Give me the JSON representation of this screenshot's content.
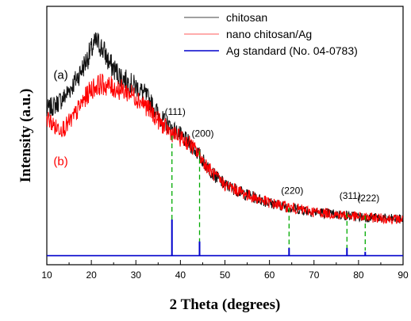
{
  "chart_data": {
    "type": "line",
    "xlabel": "2 Theta (degrees)",
    "ylabel": "Intensity (a.u.)",
    "xlim": [
      10,
      90
    ],
    "xticks": [
      10,
      20,
      30,
      40,
      50,
      60,
      70,
      80,
      90
    ],
    "y_ticks_shown": false,
    "ylim": [
      0,
      100
    ],
    "legend": {
      "placement": "top-right",
      "entries": [
        {
          "label": "chitosan",
          "color": "#808080"
        },
        {
          "label": "nano chitosan/Ag",
          "color": "#ff9090"
        },
        {
          "label": "Ag standard (No. 04-0783)",
          "color": "#0000cc"
        }
      ]
    },
    "annotations": [
      {
        "text": "(a)",
        "x": 11.5,
        "y": 72,
        "color": "#000000"
      },
      {
        "text": "(b)",
        "x": 11.5,
        "y": 38.5,
        "color": "#ff0000"
      }
    ],
    "series": [
      {
        "name": "chitosan",
        "label": "(a)",
        "color": "#111111",
        "x": [
          10,
          12,
          14,
          16,
          18,
          20,
          21,
          22,
          23,
          24,
          26,
          28,
          30,
          32,
          34,
          36,
          38,
          40,
          42,
          44,
          46,
          48,
          50,
          55,
          60,
          65,
          70,
          75,
          80,
          85,
          90
        ],
        "y": [
          60,
          62,
          65,
          70,
          76,
          83,
          86,
          85,
          82,
          78,
          74,
          71,
          69,
          66,
          61,
          56,
          53,
          50,
          47,
          43,
          38,
          34,
          31,
          27,
          24,
          22,
          20.5,
          19.5,
          18.5,
          18,
          17.5
        ]
      },
      {
        "name": "nano chitosan/Ag",
        "label": "(b)",
        "color": "#ff0000",
        "x": [
          10,
          12,
          14,
          16,
          18,
          20,
          22,
          24,
          26,
          28,
          30,
          32,
          34,
          36,
          38,
          40,
          42,
          44,
          46,
          48,
          50,
          55,
          60,
          65,
          70,
          75,
          80,
          85,
          90
        ],
        "y": [
          57,
          53,
          53,
          57,
          63,
          68,
          70,
          69,
          68,
          67,
          65,
          62,
          58,
          54,
          51,
          49,
          47,
          43,
          38,
          34,
          31,
          27,
          24,
          22,
          20.5,
          19.5,
          18.5,
          18,
          17.5
        ]
      },
      {
        "name": "Ag standard (No. 04-0783)",
        "type": "stick",
        "color": "#0000cc",
        "baseline": 3.5,
        "peaks": [
          {
            "x": 38.1,
            "height": 14
          },
          {
            "x": 44.3,
            "height": 5.5
          },
          {
            "x": 64.4,
            "height": 3
          },
          {
            "x": 77.4,
            "height": 3
          },
          {
            "x": 81.5,
            "height": 1.5
          }
        ]
      }
    ],
    "peak_guides": [
      {
        "label": "(111)",
        "x": 38.1,
        "top": 50
      },
      {
        "label": "(200)",
        "x": 44.3,
        "top": 44
      },
      {
        "label": "(220)",
        "x": 64.4,
        "top": 22
      },
      {
        "label": "(311)",
        "x": 77.4,
        "top": 20
      },
      {
        "label": "(222)",
        "x": 81.5,
        "top": 19
      }
    ]
  }
}
